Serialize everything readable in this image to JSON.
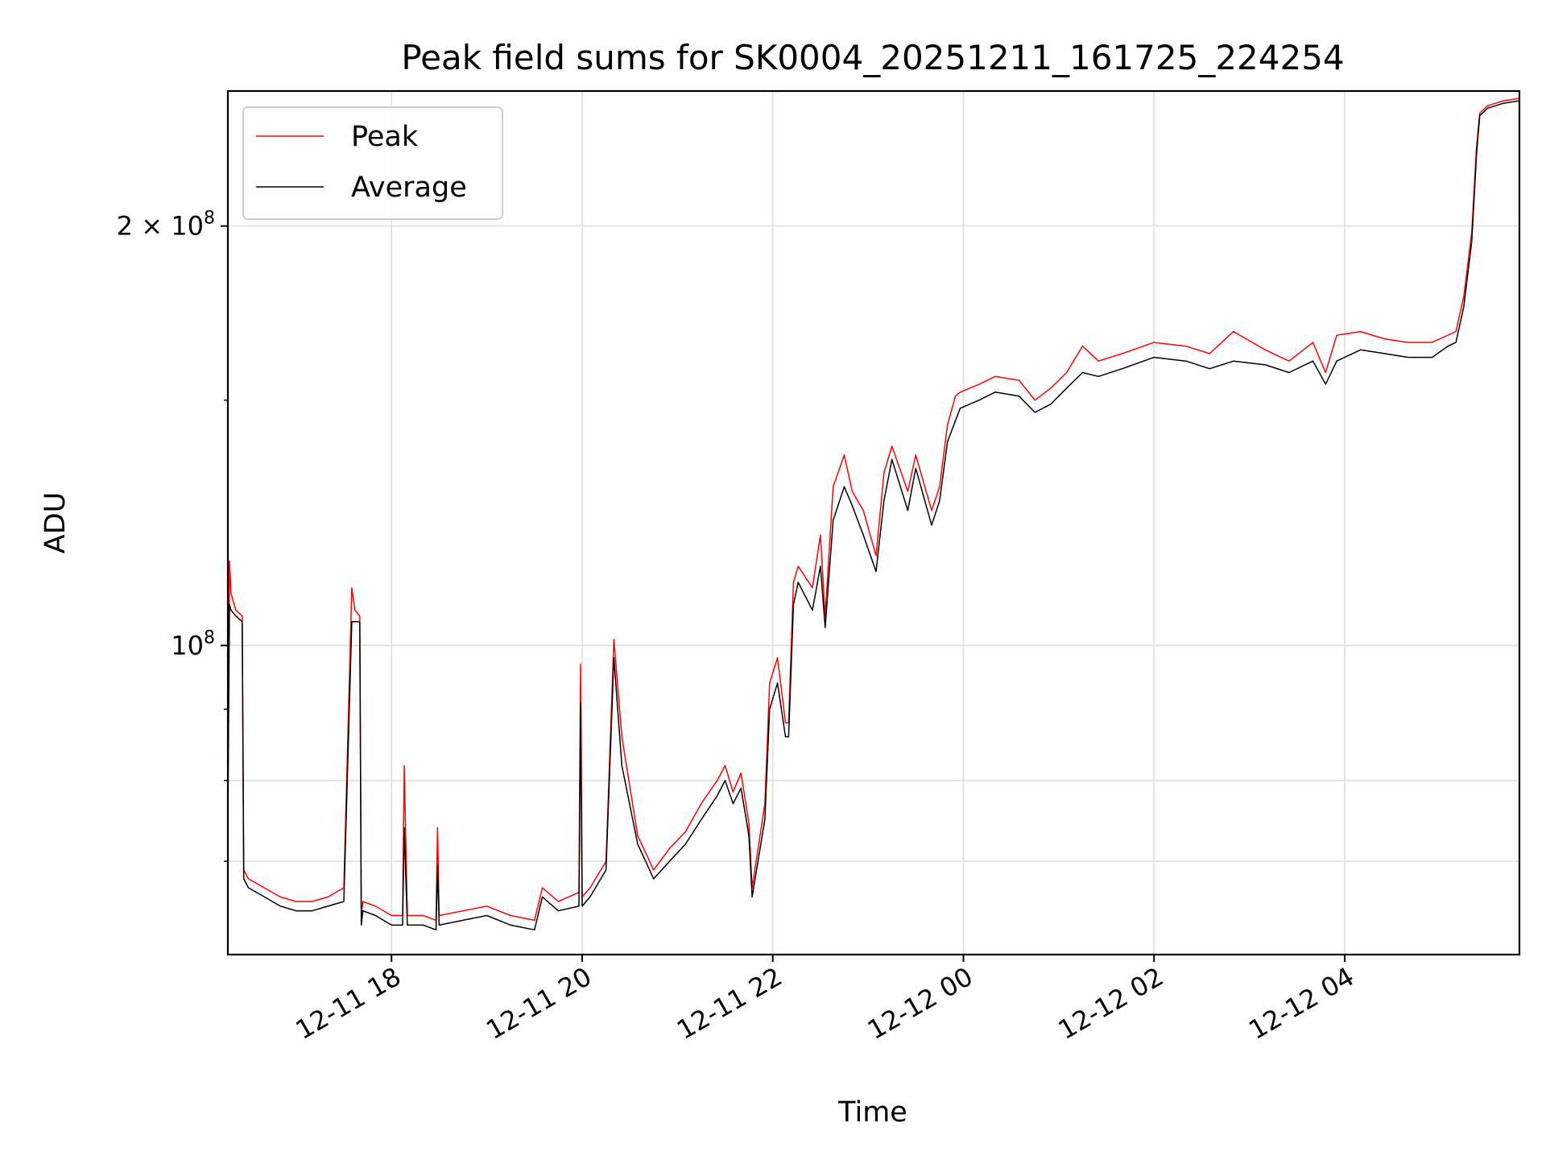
{
  "chart_data": {
    "type": "line",
    "title": "Peak field sums for SK0004_20251211_161725_224254",
    "xlabel": "Time",
    "ylabel": "ADU",
    "y_scale": "log",
    "ylim": [
      60000000,
      250000000
    ],
    "xlim": [
      "2025-12-11 16:17",
      "2025-12-12 05:50"
    ],
    "grid": true,
    "legend_placement": "top-left",
    "x_ticks": [
      {
        "t": "2025-12-11 18:00",
        "label": "12-11 18"
      },
      {
        "t": "2025-12-11 20:00",
        "label": "12-11 20"
      },
      {
        "t": "2025-12-11 22:00",
        "label": "12-11 22"
      },
      {
        "t": "2025-12-12 00:00",
        "label": "12-12 00"
      },
      {
        "t": "2025-12-12 02:00",
        "label": "12-12 02"
      },
      {
        "t": "2025-12-12 04:00",
        "label": "12-12 04"
      }
    ],
    "y_ticks": [
      {
        "value": 100000000,
        "base": "10",
        "exp": "8",
        "mant": ""
      },
      {
        "value": 200000000,
        "base": "10",
        "exp": "8",
        "mant": "2 × "
      }
    ],
    "series": [
      {
        "name": "Peak",
        "color": "#ff0000"
      },
      {
        "name": "Average",
        "color": "#000000"
      }
    ],
    "x": [
      "2025-12-11 16:17",
      "2025-12-11 16:18",
      "2025-12-11 16:19",
      "2025-12-11 16:22",
      "2025-12-11 16:26",
      "2025-12-11 16:27",
      "2025-12-11 16:30",
      "2025-12-11 16:40",
      "2025-12-11 16:50",
      "2025-12-11 17:00",
      "2025-12-11 17:10",
      "2025-12-11 17:20",
      "2025-12-11 17:30",
      "2025-12-11 17:35",
      "2025-12-11 17:37",
      "2025-12-11 17:40",
      "2025-12-11 17:41",
      "2025-12-11 17:42",
      "2025-12-11 17:50",
      "2025-12-11 18:00",
      "2025-12-11 18:07",
      "2025-12-11 18:08",
      "2025-12-11 18:10",
      "2025-12-11 18:20",
      "2025-12-11 18:28",
      "2025-12-11 18:29",
      "2025-12-11 18:30",
      "2025-12-11 18:45",
      "2025-12-11 19:00",
      "2025-12-11 19:15",
      "2025-12-11 19:30",
      "2025-12-11 19:35",
      "2025-12-11 19:45",
      "2025-12-11 19:58",
      "2025-12-11 19:59",
      "2025-12-11 20:00",
      "2025-12-11 20:05",
      "2025-12-11 20:15",
      "2025-12-11 20:20",
      "2025-12-11 20:25",
      "2025-12-11 20:35",
      "2025-12-11 20:40",
      "2025-12-11 20:45",
      "2025-12-11 20:55",
      "2025-12-11 21:05",
      "2025-12-11 21:15",
      "2025-12-11 21:25",
      "2025-12-11 21:30",
      "2025-12-11 21:35",
      "2025-12-11 21:40",
      "2025-12-11 21:45",
      "2025-12-11 21:47",
      "2025-12-11 21:55",
      "2025-12-11 21:58",
      "2025-12-11 22:03",
      "2025-12-11 22:08",
      "2025-12-11 22:10",
      "2025-12-11 22:13",
      "2025-12-11 22:16",
      "2025-12-11 22:25",
      "2025-12-11 22:30",
      "2025-12-11 22:33",
      "2025-12-11 22:38",
      "2025-12-11 22:45",
      "2025-12-11 22:50",
      "2025-12-11 22:57",
      "2025-12-11 23:05",
      "2025-12-11 23:10",
      "2025-12-11 23:15",
      "2025-12-11 23:25",
      "2025-12-11 23:30",
      "2025-12-11 23:40",
      "2025-12-11 23:45",
      "2025-12-11 23:50",
      "2025-12-11 23:55",
      "2025-12-11 23:58",
      "2025-12-12 00:10",
      "2025-12-12 00:20",
      "2025-12-12 00:35",
      "2025-12-12 00:45",
      "2025-12-12 00:55",
      "2025-12-12 01:05",
      "2025-12-12 01:15",
      "2025-12-12 01:25",
      "2025-12-12 01:40",
      "2025-12-12 02:00",
      "2025-12-12 02:20",
      "2025-12-12 02:35",
      "2025-12-12 02:50",
      "2025-12-12 03:10",
      "2025-12-12 03:25",
      "2025-12-12 03:40",
      "2025-12-12 03:48",
      "2025-12-12 03:55",
      "2025-12-12 04:10",
      "2025-12-12 04:25",
      "2025-12-12 04:40",
      "2025-12-12 04:55",
      "2025-12-12 05:05",
      "2025-12-12 05:10",
      "2025-12-12 05:15",
      "2025-12-12 05:20",
      "2025-12-12 05:23",
      "2025-12-12 05:25",
      "2025-12-12 05:30",
      "2025-12-12 05:40",
      "2025-12-12 05:50"
    ],
    "average": [
      76000000,
      107000000,
      106000000,
      105000000,
      104000000,
      68000000,
      67000000,
      66000000,
      65000000,
      64500000,
      64500000,
      65000000,
      65500000,
      104000000,
      104000000,
      104000000,
      63000000,
      64500000,
      64000000,
      63000000,
      63000000,
      74000000,
      63000000,
      63000000,
      62500000,
      69500000,
      63000000,
      63500000,
      64000000,
      63000000,
      62500000,
      66000000,
      64500000,
      65000000,
      91000000,
      65000000,
      66000000,
      69000000,
      98000000,
      82000000,
      72000000,
      70000000,
      68000000,
      70000000,
      72000000,
      75000000,
      78000000,
      80000000,
      77000000,
      79000000,
      73000000,
      66000000,
      75000000,
      90000000,
      94000000,
      86000000,
      86000000,
      107000000,
      111000000,
      106000000,
      114000000,
      103000000,
      123000000,
      130000000,
      126000000,
      120000000,
      113000000,
      127000000,
      136000000,
      125000000,
      134000000,
      122000000,
      127000000,
      140000000,
      145000000,
      148000000,
      150000000,
      152000000,
      151000000,
      147000000,
      149000000,
      153000000,
      157000000,
      156000000,
      158000000,
      161000000,
      160000000,
      158000000,
      160000000,
      159000000,
      157000000,
      160000000,
      154000000,
      160000000,
      163000000,
      162000000,
      161000000,
      161000000,
      164000000,
      165000000,
      175000000,
      195000000,
      225000000,
      240000000,
      243000000,
      245000000,
      246000000
    ],
    "peak": [
      76000000,
      115000000,
      109000000,
      106000000,
      105000000,
      69000000,
      68000000,
      67000000,
      66000000,
      65500000,
      65500000,
      66000000,
      67000000,
      110000000,
      106000000,
      105000000,
      64000000,
      65500000,
      65000000,
      64000000,
      64000000,
      82000000,
      64000000,
      64000000,
      63500000,
      74000000,
      64000000,
      64500000,
      65000000,
      64000000,
      63500000,
      67000000,
      65500000,
      66500000,
      97000000,
      66000000,
      67000000,
      70000000,
      101000000,
      86000000,
      73000000,
      71000000,
      69000000,
      71500000,
      73500000,
      77000000,
      80000000,
      82000000,
      78500000,
      81000000,
      74500000,
      67000000,
      77000000,
      94000000,
      98000000,
      88000000,
      88000000,
      111000000,
      114000000,
      110000000,
      120000000,
      105000000,
      130000000,
      137000000,
      129000000,
      125000000,
      116000000,
      133000000,
      139000000,
      129000000,
      137000000,
      125000000,
      130000000,
      144000000,
      151000000,
      152000000,
      154000000,
      156000000,
      155000000,
      150000000,
      153000000,
      157000000,
      164000000,
      160000000,
      162000000,
      165000000,
      164000000,
      162000000,
      168000000,
      163000000,
      160000000,
      165000000,
      157000000,
      167000000,
      168000000,
      166000000,
      165000000,
      165000000,
      167000000,
      168000000,
      178000000,
      198000000,
      228000000,
      241000000,
      244000000,
      246000000,
      247000000
    ]
  }
}
